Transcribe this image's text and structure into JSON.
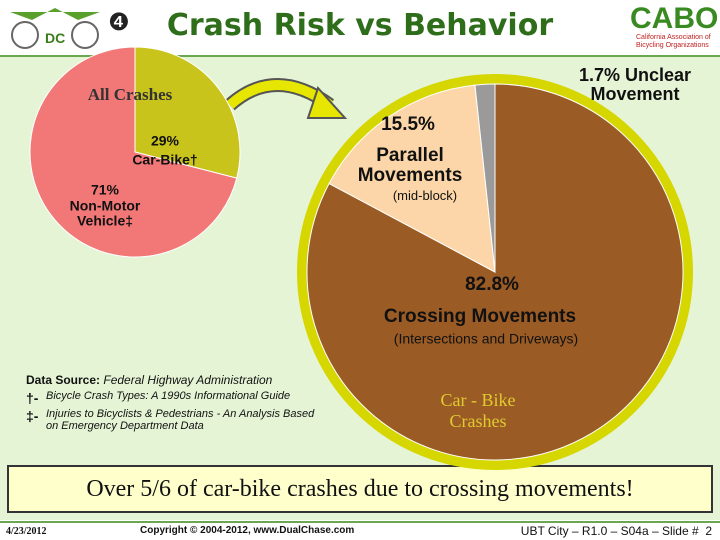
{
  "slide": {
    "title": "Crash Risk vs Behavior",
    "number_icon": "❹",
    "logo_left": "DC",
    "logo_right": "CABO",
    "logo_right_sub": "California Association of Bicycling Organizations",
    "source_label": "Data Source:",
    "source": "Federal Highway Administration",
    "notes": [
      {
        "mark": "†-",
        "text": "Bicycle Crash Types: A 1990s Informational Guide"
      },
      {
        "mark": "‡-",
        "text": "Injuries to Bicyclists & Pedestrians - An Analysis Based on Emergency Department Data"
      }
    ],
    "banner": "Over 5/6 of car-bike crashes due to crossing movements!",
    "footer_date": "4/23/2012",
    "footer_copyright": "Copyright © 2004-2012, www.DualChase.com",
    "footer_right": "UBT City – R1.0 – S04a – Slide #  2"
  },
  "chart_data": [
    {
      "type": "pie",
      "title": "All Crashes",
      "categories": [
        "Car-Bike†",
        "Non-Motor Vehicle‡"
      ],
      "values": [
        29,
        71
      ],
      "value_labels": [
        "29%",
        "71%"
      ],
      "colors": [
        "#c9c41c",
        "#f27878"
      ]
    },
    {
      "type": "pie",
      "title": "Car - Bike Crashes",
      "categories": [
        "Crossing Movements",
        "Parallel Movements",
        "Unclear Movement"
      ],
      "sublabels": [
        "(Intersections and Driveways)",
        "(mid-block)",
        null
      ],
      "values": [
        82.8,
        15.5,
        1.7
      ],
      "value_labels": [
        "82.8%",
        "15.5%",
        "1.7%"
      ],
      "colors": [
        "#9a5b24",
        "#fcd6a8",
        "#9a9a9a"
      ]
    }
  ]
}
